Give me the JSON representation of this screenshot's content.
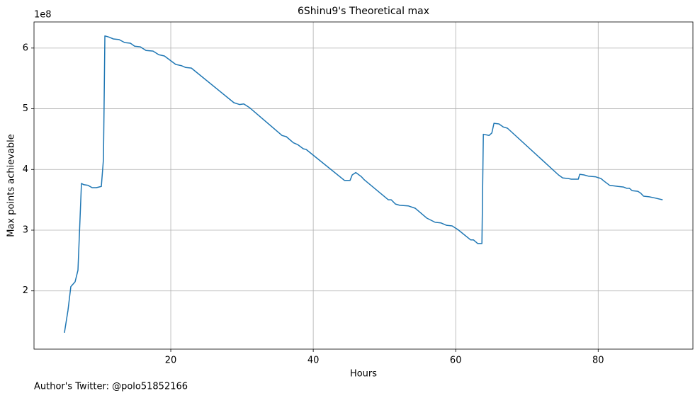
{
  "chart_data": {
    "type": "line",
    "title": "6Shinu9's Theoretical max",
    "xlabel": "Hours",
    "ylabel": "Max points achievable",
    "y_offset_label": "1e8",
    "annotation": "Author's Twitter: @polo51852166",
    "color": "#1f77b4",
    "x": [
      5.07,
      5.57,
      5.97,
      6.57,
      6.97,
      7.46,
      7.76,
      8.36,
      8.96,
      9.55,
      10.25,
      10.55,
      10.75,
      11.34,
      11.94,
      12.74,
      13.53,
      14.33,
      14.93,
      15.72,
      16.52,
      17.51,
      18.31,
      19.1,
      19.9,
      20.7,
      21.49,
      22.09,
      22.89,
      28.86,
      29.65,
      30.25,
      31.04,
      35.62,
      36.22,
      37.21,
      37.81,
      38.61,
      39.0,
      44.38,
      45.17,
      45.47,
      45.97,
      46.77,
      47.16,
      50.55,
      50.95,
      51.54,
      52.14,
      53.33,
      54.33,
      54.93,
      55.92,
      57.11,
      57.91,
      58.71,
      59.5,
      59.9,
      60.3,
      62.09,
      62.49,
      63.08,
      63.68,
      63.88,
      64.68,
      65.07,
      65.37,
      66.07,
      66.67,
      67.26,
      74.43,
      75.02,
      75.82,
      76.22,
      77.21,
      77.41,
      78.01,
      78.61,
      79.6,
      80.4,
      80.8,
      81.59,
      82.79,
      83.58,
      83.98,
      84.38,
      84.78,
      85.57,
      85.97,
      86.37,
      87.16,
      87.96,
      89.05
    ],
    "values": [
      1.31,
      1.68,
      2.07,
      2.15,
      2.34,
      3.77,
      3.75,
      3.74,
      3.7,
      3.7,
      3.72,
      4.17,
      6.2,
      6.18,
      6.15,
      6.14,
      6.09,
      6.08,
      6.03,
      6.02,
      5.96,
      5.95,
      5.89,
      5.87,
      5.8,
      5.73,
      5.71,
      5.68,
      5.67,
      5.1,
      5.07,
      5.08,
      5.02,
      4.56,
      4.54,
      4.44,
      4.41,
      4.34,
      4.33,
      3.82,
      3.82,
      3.91,
      3.95,
      3.88,
      3.83,
      3.5,
      3.5,
      3.43,
      3.41,
      3.4,
      3.36,
      3.3,
      3.2,
      3.13,
      3.12,
      3.08,
      3.07,
      3.04,
      3.01,
      2.84,
      2.84,
      2.78,
      2.78,
      4.58,
      4.56,
      4.6,
      4.76,
      4.75,
      4.7,
      4.68,
      3.91,
      3.86,
      3.85,
      3.84,
      3.84,
      3.92,
      3.91,
      3.89,
      3.88,
      3.85,
      3.81,
      3.74,
      3.72,
      3.71,
      3.69,
      3.69,
      3.65,
      3.64,
      3.61,
      3.56,
      3.55,
      3.53,
      3.5
    ],
    "xlim": [
      0.8,
      93.3
    ],
    "ylim": [
      1.04,
      6.43
    ],
    "xticks": [
      20,
      40,
      60,
      80
    ],
    "yticks": [
      2,
      3,
      4,
      5,
      6
    ],
    "grid": true
  }
}
